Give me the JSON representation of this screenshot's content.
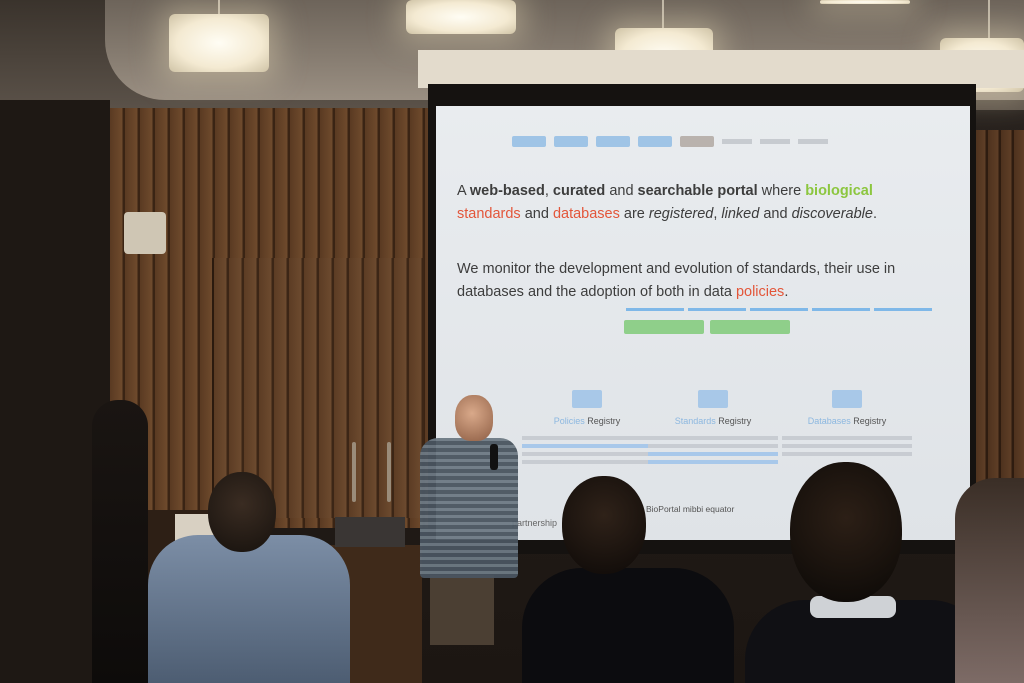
{
  "slide": {
    "headline_parts": [
      {
        "text": "A ",
        "style": "plain"
      },
      {
        "text": "web-based",
        "style": "bold"
      },
      {
        "text": ", ",
        "style": "plain"
      },
      {
        "text": "curated",
        "style": "bold"
      },
      {
        "text": " and ",
        "style": "plain"
      },
      {
        "text": "searchable portal",
        "style": "bold"
      },
      {
        "text": " where ",
        "style": "plain"
      },
      {
        "text": "biological",
        "style": "green"
      },
      {
        "text": "standards",
        "style": "red"
      },
      {
        "text": " and ",
        "style": "plain"
      },
      {
        "text": "databases",
        "style": "red"
      },
      {
        "text": " are ",
        "style": "plain"
      },
      {
        "text": "registered",
        "style": "italic"
      },
      {
        "text": ", ",
        "style": "plain"
      },
      {
        "text": "linked",
        "style": "italic"
      },
      {
        "text": " and ",
        "style": "plain"
      },
      {
        "text": "discoverable",
        "style": "italic"
      },
      {
        "text": ".",
        "style": "plain"
      }
    ],
    "sub_line": "We monitor the development and evolution of standards, their use in databases and the adoption of both in data ",
    "sub_highlight": "policies",
    "sub_end": ".",
    "columns": [
      {
        "prefix": "Policies",
        "suffix": " Registry"
      },
      {
        "prefix": "Standards",
        "suffix": " Registry"
      },
      {
        "prefix": "Databases",
        "suffix": " Registry"
      }
    ],
    "logos": "BioPortal  mibbi  equator",
    "partners": "partnership"
  },
  "colors": {
    "accent_green": "#8cc63f",
    "accent_red": "#e3563a",
    "nav_blue": "#9fc4e6"
  }
}
